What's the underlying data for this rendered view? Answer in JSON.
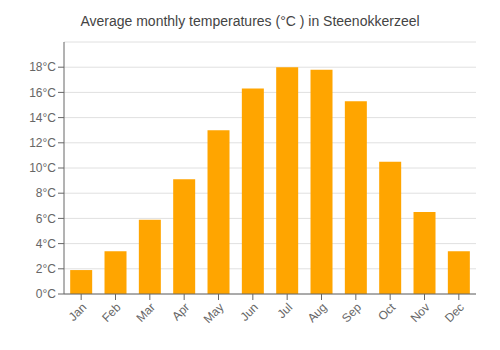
{
  "chart_data": {
    "type": "bar",
    "title": "Average monthly temperatures (°C ) in Steenokkerzeel",
    "categories": [
      "Jan",
      "Feb",
      "Mar",
      "Apr",
      "May",
      "Jun",
      "Jul",
      "Aug",
      "Sep",
      "Oct",
      "Nov",
      "Dec"
    ],
    "values": [
      1.9,
      3.4,
      5.9,
      9.1,
      13.0,
      16.3,
      18.0,
      17.8,
      15.3,
      10.5,
      6.5,
      3.4
    ],
    "color": "#FFA500",
    "ylim": [
      0,
      20
    ],
    "yticks": [
      {
        "value": 0,
        "label": "0°C"
      },
      {
        "value": 2,
        "label": "2°C"
      },
      {
        "value": 4,
        "label": "4°C"
      },
      {
        "value": 6,
        "label": "6°C"
      },
      {
        "value": 8,
        "label": "8°C"
      },
      {
        "value": 10,
        "label": "10°C"
      },
      {
        "value": 12,
        "label": "12°C"
      },
      {
        "value": 14,
        "label": "14°C"
      },
      {
        "value": 16,
        "label": "16°C"
      },
      {
        "value": 18,
        "label": "18°C"
      }
    ],
    "grid": true
  }
}
